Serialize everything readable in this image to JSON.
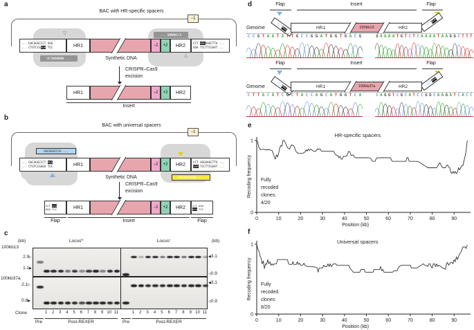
{
  "colors": {
    "insert_pink": "#e7a6ad",
    "minus2_pink": "#f0a9ca",
    "plus2_green": "#8fd2b5",
    "spacer_blue": "#b5d6ef",
    "spacer_yellow": "#f5e93e",
    "blob_gray": "#d7d7d7",
    "sgrna_gray": "#949494",
    "base_A": "#2ea82e",
    "base_C": "#6b93d6",
    "base_G": "#4a4a4a",
    "base_T": "#e03131",
    "line": "#333333"
  },
  "a": {
    "label": "a",
    "title": "BAC with HR-specific spacers",
    "minus1": "−1",
    "hr1": "HR1",
    "hr2": "HR2",
    "minus2": "−2",
    "plus2": "+2",
    "left_box": {
      "l1": [
        {
          "t": "... GACAGGCCCT AGG"
        }
      ],
      "l2": [
        {
          "t": "... CTGTCCG"
        },
        {
          "t": "GGA",
          "c": "hl"
        },
        {
          "t": " TCC"
        }
      ]
    },
    "right_box": {
      "l1": [
        {
          "t": "CCT "
        },
        {
          "t": "AGG",
          "c": "hl"
        },
        {
          "t": "AAGCTTA ..."
        }
      ],
      "l2": [
        {
          "t": "GGA TCCTTCGAAT ..."
        }
      ]
    },
    "sgrna_left": "UCCNNNNNNN ...",
    "sgrna_right": "... NNNNNCCU",
    "cut_left": "▽",
    "cut_right": "△",
    "synthetic": "Synthetic DNA",
    "excision1": "CRISPR–Cas9",
    "excision2": "excision",
    "insert": "Insert"
  },
  "b": {
    "label": "b",
    "title": "BAC with universal spacers",
    "minus1": "−1",
    "hr1": "HR1",
    "hr2": "HR2",
    "minus2": "−2",
    "plus2": "+2",
    "left_box": {
      "l1": [
        {
          "t": "... GACAGGCCCT "
        },
        {
          "t": "AGG",
          "c": "hl"
        }
      ],
      "l2": [
        {
          "t": "... CTGTCCGGGA TCC"
        }
      ]
    },
    "right_box": {
      "l1": [
        {
          "t": "CCT AGGAAGCTTA ..."
        }
      ],
      "l2": [
        {
          "t": "GGA",
          "c": "hl"
        },
        {
          "t": " TCCTTCGAAT ..."
        }
      ]
    },
    "spacer_blue": "GACAGGCCCU ...",
    "spacer_yellow": "UCCUUCGAAU ...",
    "flap_left": {
      "l1": [
        {
          "t": "CCT "
        },
        {
          "t": "AGG",
          "c": "hl"
        }
      ],
      "l2": [
        {
          "t": "GGA TCC"
        }
      ]
    },
    "flap_right": {
      "l1": [
        {
          "t": "CCT AGG"
        }
      ],
      "l2": [
        {
          "t": "GGA",
          "c": "hl"
        },
        {
          "t": " TCC"
        }
      ]
    },
    "synthetic": "Synthetic DNA",
    "excision1": "CRISPR–Cas9",
    "excision2": "excision",
    "insert": "Insert",
    "flap": "Flap"
  },
  "c": {
    "label": "c",
    "kb_left": "(kb)",
    "kb_right": "(kb)",
    "locus_left": "Locus⁰",
    "locus_right": "Locus¹",
    "gel_names": [
      "100kb13",
      "100kb37a"
    ],
    "markers_left": [
      {
        "v": "2.9",
        "arrow": "▷"
      },
      {
        "v": "1.1",
        "arrow": "▶"
      },
      {
        "v": "2.1",
        "arrow": "▷"
      },
      {
        "v": "0.8",
        "arrow": "▶"
      }
    ],
    "markers_right": [
      {
        "v": "3.1",
        "arrow": "◀"
      },
      {
        "v": "0.9",
        "arrow": "◁"
      },
      {
        "v": "3.1",
        "arrow": "◀"
      },
      {
        "v": "0.9",
        "arrow": "◁"
      }
    ],
    "clone": "Clone",
    "pre": "Pre",
    "post": "Post-REXER",
    "lanes": [
      "1",
      "2",
      "3",
      "4",
      "5",
      "6",
      "7",
      "8",
      "9",
      "10",
      "11"
    ],
    "bands": {
      "g0_left": {
        "pre_y": 0.47,
        "pre_i": 0.5,
        "y": 0.78,
        "i": [
          0.9,
          0.85,
          0.85,
          0.5,
          0.8,
          0.4,
          0.8,
          0.9,
          0.45,
          0.85,
          0.9
        ]
      },
      "g0_right": {
        "pre_y": 0.9,
        "pre_i": 0.9,
        "y": 0.3,
        "i": [
          0.95,
          0.3,
          0.95,
          0.9,
          0.55,
          0.95,
          0.95,
          0.6,
          0.95,
          0.95,
          0.35
        ]
      },
      "g1_left": {
        "pre_y": 0.3,
        "pre_i": 0.85,
        "y": 0.79,
        "i": [
          0.95,
          0.9,
          0.9,
          0.9,
          0.85,
          0.7,
          0.9,
          0.9,
          0.9,
          0.85,
          0.9
        ]
      },
      "g1_right": {
        "pre_y": 0.79,
        "pre_i": 0.9,
        "y": 0.25,
        "i": [
          0.9,
          0.9,
          0.85,
          0.85,
          0.85,
          0.88,
          0.9,
          0.85,
          0.88,
          0.9,
          0.75
        ]
      }
    }
  },
  "d": {
    "label": "d",
    "genome": "Genome",
    "flap": "Flap",
    "insert": "Insert",
    "hr1": "HR1",
    "hr2": "HR2",
    "flap_seq": [
      {
        "t": "CCT",
        "c": "blue"
      },
      {
        "t": "AGG",
        "c": "hl"
      }
    ],
    "rows": [
      {
        "insert_name": "100kb13",
        "seq_left": "CCGTAATATTGCCGGATGGTGACG",
        "seq_right": "GAAAATGTCTCAAAATAAGGCTTT"
      },
      {
        "insert_name": "100kb37a",
        "seq_left": "CTTACATCGCTACCAGCATGGTCA",
        "seq_right": "CAGGTCGCATCCGGCAAGATCACC"
      }
    ]
  },
  "e_label": "e",
  "f_label": "f",
  "chart_data": [
    {
      "id": "e",
      "type": "line",
      "title": "HR-specific spacers",
      "xlabel": "Position (kb)",
      "ylabel": "Recoding frequency",
      "xlim": [
        0,
        97.5
      ],
      "ylim": [
        0,
        1
      ],
      "x_ticks": [
        0,
        10,
        20,
        30,
        40,
        50,
        60,
        70,
        80,
        90
      ],
      "y_ticks": [
        0,
        1
      ],
      "grid": false,
      "annotation": [
        "Fully",
        "recoded",
        "clones:",
        "4/20"
      ],
      "series": [
        [
          0,
          1
        ],
        [
          0.5,
          0.97
        ],
        [
          1,
          0.9
        ],
        [
          2,
          0.87
        ],
        [
          3,
          0.88
        ],
        [
          4,
          0.87
        ],
        [
          5,
          0.87
        ],
        [
          6,
          0.87
        ],
        [
          7,
          0.86
        ],
        [
          7.5,
          0.82
        ],
        [
          8,
          0.77
        ],
        [
          8.5,
          0.74
        ],
        [
          9,
          0.8
        ],
        [
          9.5,
          0.77
        ],
        [
          10,
          0.82
        ],
        [
          10.5,
          0.9
        ],
        [
          11,
          0.93
        ],
        [
          11.5,
          0.92
        ],
        [
          12,
          1
        ],
        [
          12.5,
          1
        ],
        [
          13,
          0.97
        ],
        [
          14,
          0.9
        ],
        [
          15,
          0.88
        ],
        [
          15.5,
          0.92
        ],
        [
          16,
          0.94
        ],
        [
          17,
          0.92
        ],
        [
          17.5,
          0.88
        ],
        [
          18,
          0.84
        ],
        [
          19,
          0.82
        ],
        [
          20,
          0.82
        ],
        [
          21,
          0.82
        ],
        [
          22,
          0.84
        ],
        [
          22.5,
          0.87
        ],
        [
          23,
          0.85
        ],
        [
          23.5,
          0.88
        ],
        [
          24,
          0.86
        ],
        [
          24.5,
          0.88
        ],
        [
          25,
          0.87
        ],
        [
          26,
          0.85
        ],
        [
          27,
          0.85
        ],
        [
          27.5,
          0.88
        ],
        [
          28,
          0.88
        ],
        [
          29,
          0.88
        ],
        [
          29.5,
          0.85
        ],
        [
          30,
          0.85
        ],
        [
          32,
          0.85
        ],
        [
          34,
          0.85
        ],
        [
          35,
          0.85
        ],
        [
          36,
          0.8
        ],
        [
          37,
          0.79
        ],
        [
          37.5,
          0.76
        ],
        [
          38,
          0.78
        ],
        [
          38.5,
          0.74
        ],
        [
          39,
          0.74
        ],
        [
          39.5,
          0.78
        ],
        [
          41,
          0.78
        ],
        [
          41.5,
          0.82
        ],
        [
          42,
          0.85
        ],
        [
          42.5,
          0.84
        ],
        [
          43,
          0.79
        ],
        [
          44,
          0.8
        ],
        [
          44.5,
          0.77
        ],
        [
          45,
          0.76
        ],
        [
          47,
          0.76
        ],
        [
          49,
          0.76
        ],
        [
          51,
          0.76
        ],
        [
          52,
          0.75
        ],
        [
          52.5,
          0.72
        ],
        [
          53,
          0.71
        ],
        [
          54,
          0.71
        ],
        [
          54.5,
          0.75
        ],
        [
          55,
          0.76
        ],
        [
          58,
          0.76
        ],
        [
          61,
          0.76
        ],
        [
          61.5,
          0.72
        ],
        [
          62,
          0.71
        ],
        [
          65,
          0.71
        ],
        [
          68,
          0.71
        ],
        [
          68.5,
          0.76
        ],
        [
          69,
          0.76
        ],
        [
          69.5,
          0.71
        ],
        [
          71,
          0.71
        ],
        [
          73,
          0.71
        ],
        [
          74,
          0.7
        ],
        [
          75,
          0.68
        ],
        [
          76,
          0.66
        ],
        [
          77,
          0.64
        ],
        [
          78,
          0.62
        ],
        [
          80,
          0.62
        ],
        [
          82,
          0.62
        ],
        [
          82.5,
          0.64
        ],
        [
          83,
          0.67
        ],
        [
          83.5,
          0.69
        ],
        [
          84,
          0.66
        ],
        [
          84.5,
          0.63
        ],
        [
          85,
          0.62
        ],
        [
          86,
          0.62
        ],
        [
          86.5,
          0.65
        ],
        [
          87,
          0.66
        ],
        [
          87.5,
          0.63
        ],
        [
          88,
          0.62
        ],
        [
          88.5,
          0.56
        ],
        [
          89,
          0.54
        ],
        [
          89.5,
          0.57
        ],
        [
          90,
          0.54
        ],
        [
          90.5,
          0.57
        ],
        [
          91,
          0.54
        ],
        [
          91.5,
          0.56
        ],
        [
          92,
          0.62
        ],
        [
          92.5,
          0.59
        ],
        [
          93,
          0.62
        ],
        [
          93.5,
          0.65
        ],
        [
          94,
          0.65
        ],
        [
          94.5,
          0.72
        ],
        [
          95,
          0.78
        ],
        [
          95.5,
          0.86
        ],
        [
          96,
          1
        ]
      ]
    },
    {
      "id": "f",
      "type": "line",
      "title": "Universal spacers",
      "xlabel": "Position (kb)",
      "ylabel": "Recoding frequency",
      "xlim": [
        0,
        97.5
      ],
      "ylim": [
        0,
        1
      ],
      "x_ticks": [
        0,
        10,
        20,
        30,
        40,
        50,
        60,
        70,
        80,
        90
      ],
      "y_ticks": [
        0,
        1
      ],
      "grid": false,
      "annotation": [
        "Fully",
        "recoded",
        "clones:",
        "8/20"
      ],
      "series": [
        [
          0,
          1
        ],
        [
          0.5,
          0.93
        ],
        [
          1,
          0.9
        ],
        [
          1.5,
          0.83
        ],
        [
          2,
          0.8
        ],
        [
          2.5,
          0.72
        ],
        [
          3,
          0.76
        ],
        [
          3.5,
          0.65
        ],
        [
          4,
          0.72
        ],
        [
          4.5,
          0.71
        ],
        [
          5,
          0.78
        ],
        [
          5.5,
          0.72
        ],
        [
          6,
          0.75
        ],
        [
          6.5,
          0.7
        ],
        [
          7,
          0.72
        ],
        [
          7.5,
          0.7
        ],
        [
          8,
          0.72
        ],
        [
          9,
          0.72
        ],
        [
          9.5,
          0.78
        ],
        [
          10,
          0.78
        ],
        [
          12,
          0.78
        ],
        [
          14,
          0.78
        ],
        [
          14.5,
          0.72
        ],
        [
          15,
          0.71
        ],
        [
          16,
          0.71
        ],
        [
          16.5,
          0.75
        ],
        [
          17,
          0.71
        ],
        [
          18,
          0.71
        ],
        [
          18.5,
          0.75
        ],
        [
          19,
          0.71
        ],
        [
          19.5,
          0.73
        ],
        [
          20,
          0.7
        ],
        [
          21,
          0.7
        ],
        [
          21.5,
          0.73
        ],
        [
          22,
          0.7
        ],
        [
          23,
          0.68
        ],
        [
          25,
          0.68
        ],
        [
          27,
          0.67
        ],
        [
          27.5,
          0.66
        ],
        [
          28,
          0.6
        ],
        [
          28.5,
          0.66
        ],
        [
          29,
          0.66
        ],
        [
          30,
          0.66
        ],
        [
          30.5,
          0.7
        ],
        [
          31,
          0.68
        ],
        [
          32,
          0.68
        ],
        [
          32.5,
          0.72
        ],
        [
          33,
          0.68
        ],
        [
          33.5,
          0.72
        ],
        [
          34,
          0.68
        ],
        [
          35,
          0.72
        ],
        [
          36,
          0.72
        ],
        [
          36.5,
          0.7
        ],
        [
          38,
          0.7
        ],
        [
          40,
          0.7
        ],
        [
          42,
          0.7
        ],
        [
          42.5,
          0.66
        ],
        [
          43,
          0.64
        ],
        [
          43.5,
          0.62
        ],
        [
          44,
          0.6
        ],
        [
          46,
          0.6
        ],
        [
          47,
          0.6
        ],
        [
          47.5,
          0.64
        ],
        [
          48,
          0.64
        ],
        [
          49,
          0.64
        ],
        [
          49.5,
          0.6
        ],
        [
          50,
          0.6
        ],
        [
          52,
          0.6
        ],
        [
          53,
          0.6
        ],
        [
          53.5,
          0.64
        ],
        [
          54,
          0.64
        ],
        [
          56,
          0.64
        ],
        [
          56.5,
          0.68
        ],
        [
          57,
          0.62
        ],
        [
          57.5,
          0.64
        ],
        [
          58,
          0.6
        ],
        [
          59,
          0.6
        ],
        [
          61,
          0.6
        ],
        [
          62,
          0.6
        ],
        [
          62.5,
          0.62
        ],
        [
          63,
          0.62
        ],
        [
          64,
          0.62
        ],
        [
          64.5,
          0.66
        ],
        [
          65,
          0.68
        ],
        [
          66,
          0.7
        ],
        [
          68,
          0.7
        ],
        [
          70,
          0.7
        ],
        [
          70.5,
          0.66
        ],
        [
          71,
          0.66
        ],
        [
          73,
          0.66
        ],
        [
          74,
          0.68
        ],
        [
          75,
          0.7
        ],
        [
          76,
          0.72
        ],
        [
          76.5,
          0.7
        ],
        [
          77,
          0.7
        ],
        [
          78,
          0.68
        ],
        [
          78.5,
          0.72
        ],
        [
          79,
          0.72
        ],
        [
          79.5,
          0.68
        ],
        [
          80,
          0.66
        ],
        [
          80.5,
          0.72
        ],
        [
          81,
          0.72
        ],
        [
          81.5,
          0.68
        ],
        [
          82,
          0.72
        ],
        [
          82.5,
          0.68
        ],
        [
          83,
          0.7
        ],
        [
          84,
          0.68
        ],
        [
          84.5,
          0.66
        ],
        [
          85,
          0.66
        ],
        [
          86,
          0.64
        ],
        [
          86.5,
          0.72
        ],
        [
          87,
          0.74
        ],
        [
          87.5,
          0.7
        ],
        [
          88,
          0.72
        ],
        [
          88.5,
          0.74
        ],
        [
          89,
          0.74
        ],
        [
          89.5,
          0.72
        ],
        [
          90,
          0.78
        ],
        [
          90.5,
          0.75
        ],
        [
          91,
          0.82
        ],
        [
          91.5,
          0.78
        ],
        [
          92,
          0.82
        ],
        [
          92.5,
          0.86
        ],
        [
          93,
          0.88
        ],
        [
          93.5,
          0.92
        ],
        [
          94,
          0.96
        ],
        [
          95,
          0.96
        ],
        [
          95.5,
          0.94
        ],
        [
          96,
          0.99
        ]
      ]
    }
  ]
}
